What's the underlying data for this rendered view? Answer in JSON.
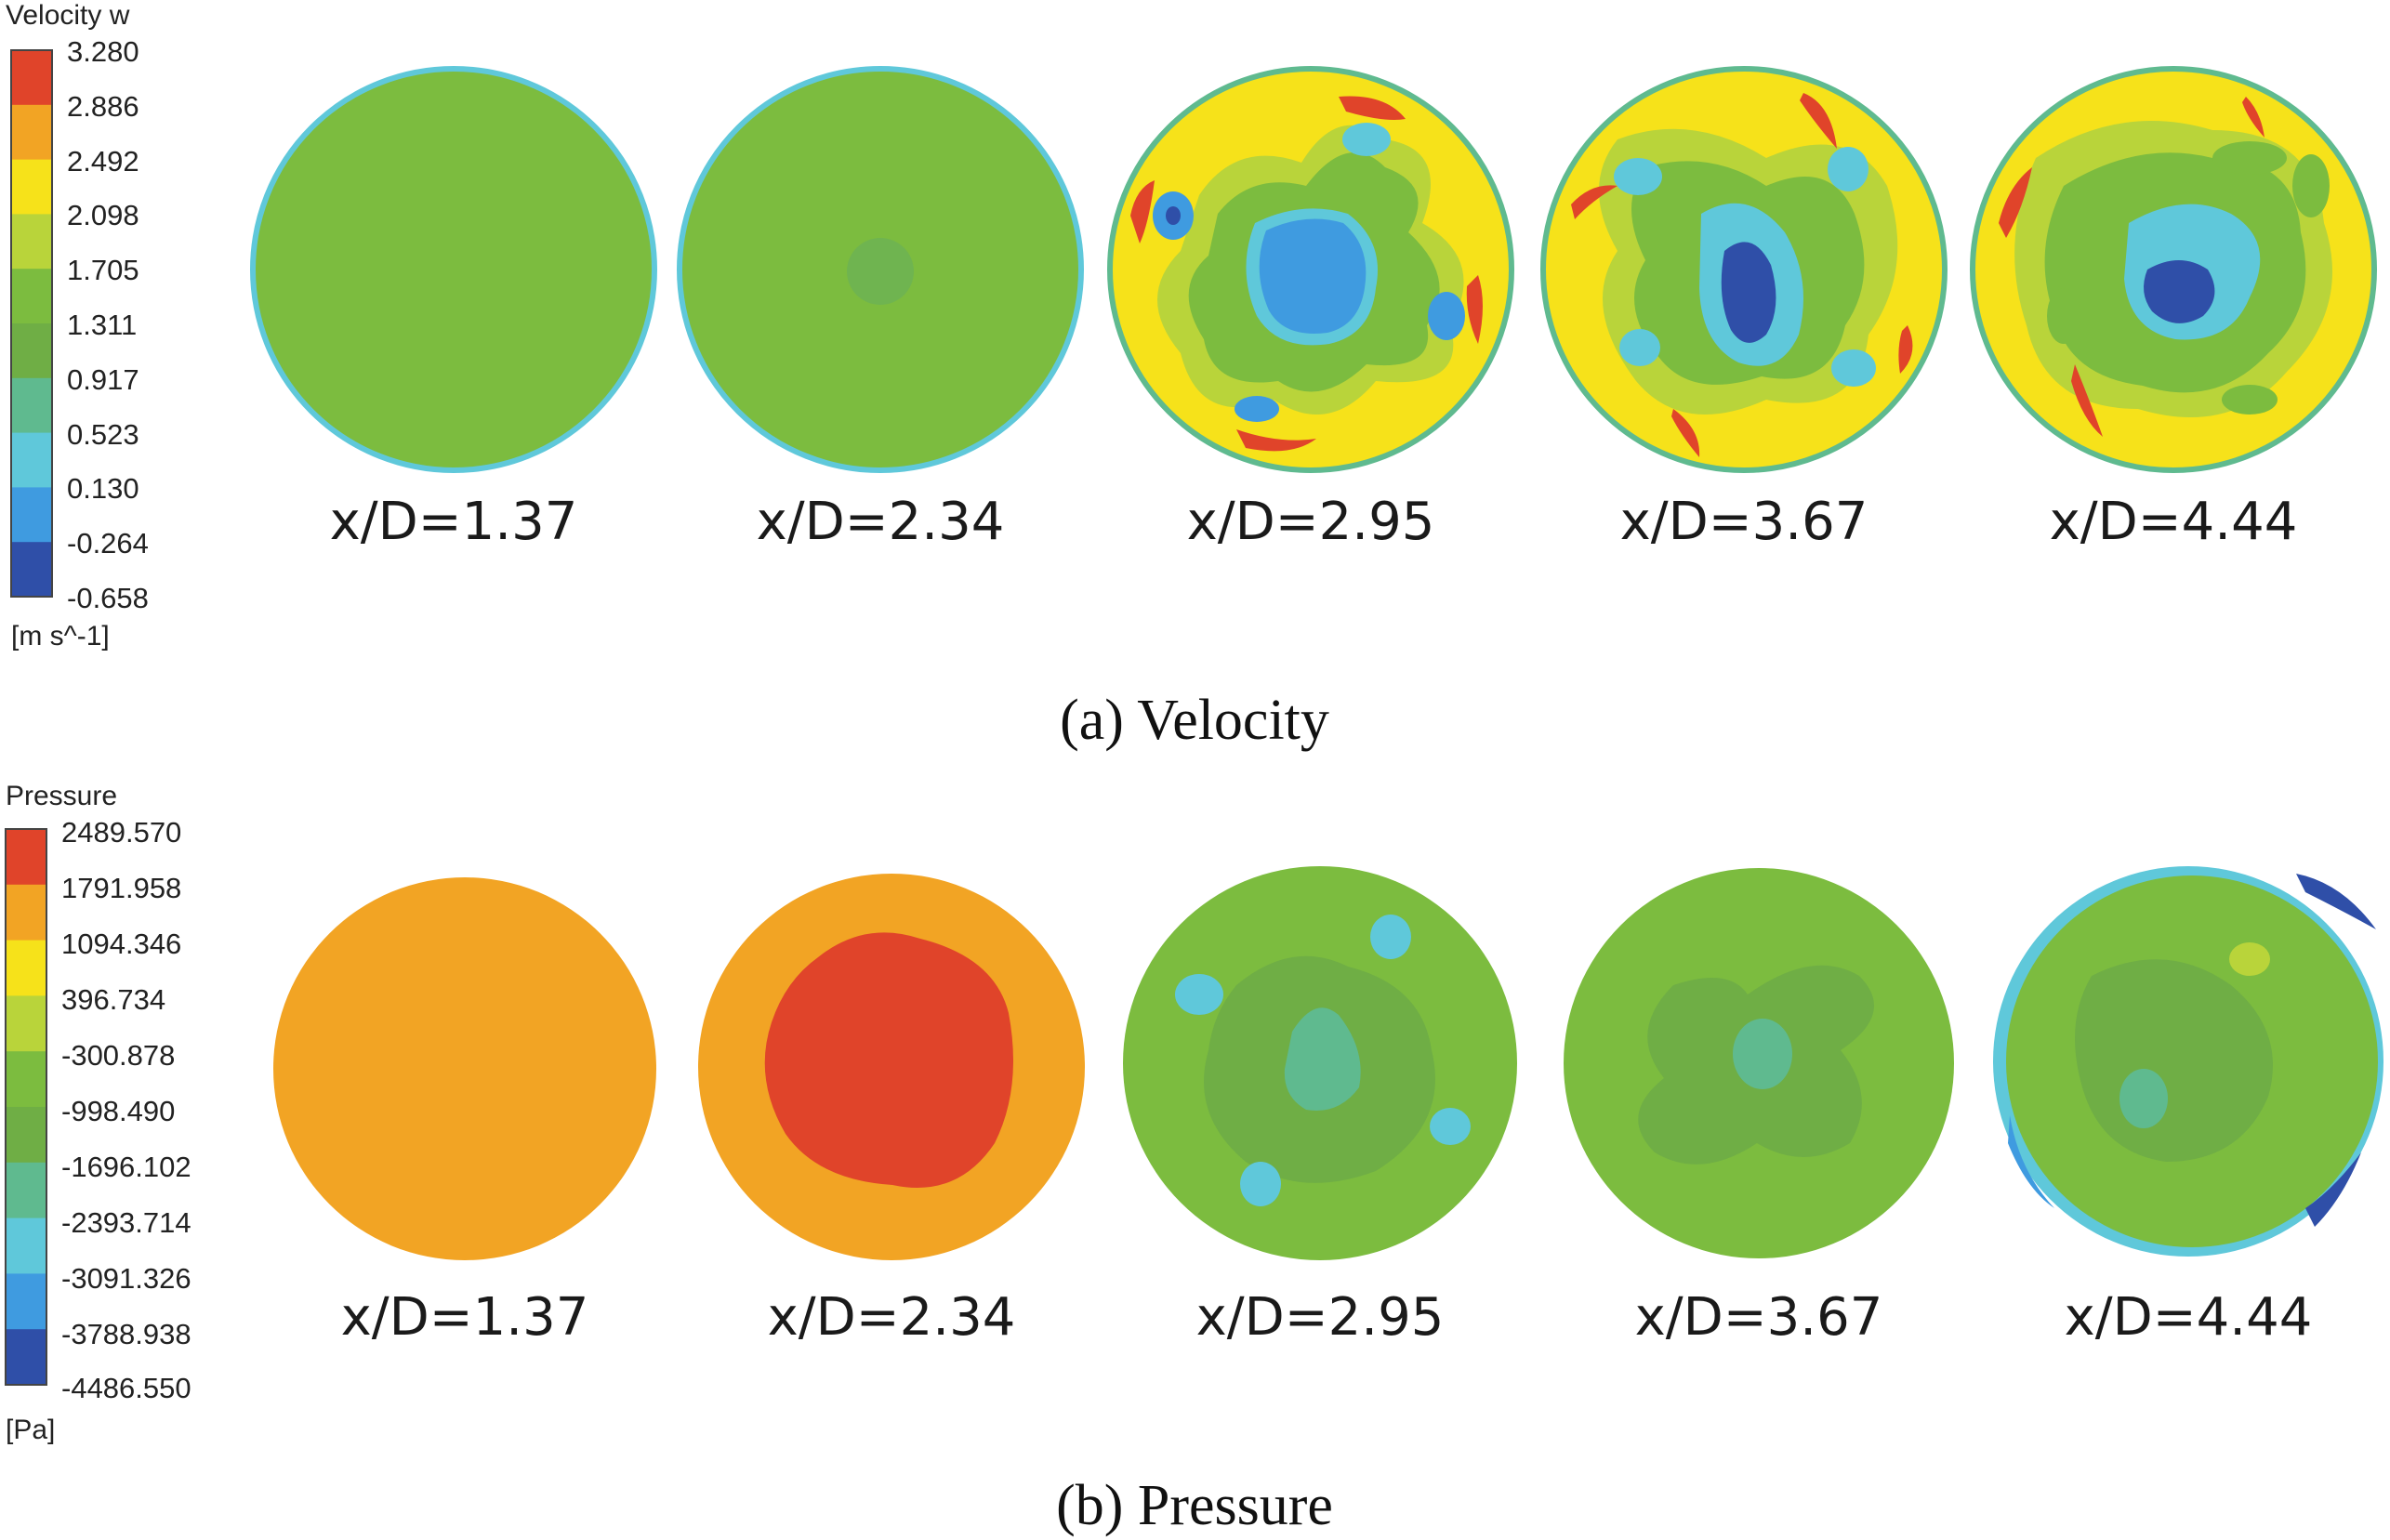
{
  "panels": [
    {
      "id": "velocity",
      "colorbar": {
        "title": "Velocity w",
        "unit": "[m s^-1]",
        "ticks": [
          "3.280",
          "2.886",
          "2.492",
          "2.098",
          "1.705",
          "1.311",
          "0.917",
          "0.523",
          "0.130",
          "-0.264",
          "-0.658"
        ],
        "colors": [
          "#e0442a",
          "#f2a424",
          "#f6e21a",
          "#b9d43a",
          "#7cbc3f",
          "#6fae45",
          "#5fba8f",
          "#5fc8da",
          "#3f9be0",
          "#2f4fa8"
        ]
      },
      "sections": [
        {
          "label": "x/D=1.37",
          "pattern": "uniform-green"
        },
        {
          "label": "x/D=2.34",
          "pattern": "uniform-green-weak-core"
        },
        {
          "label": "x/D=2.95",
          "pattern": "four-lobe-vortex-yellow"
        },
        {
          "label": "x/D=3.67",
          "pattern": "swirl-vortex-deep-core"
        },
        {
          "label": "x/D=4.44",
          "pattern": "swirl-vortex-offset-core"
        }
      ],
      "caption": "(a) Velocity"
    },
    {
      "id": "pressure",
      "colorbar": {
        "title": "Pressure",
        "unit": "[Pa]",
        "ticks": [
          "2489.570",
          "1791.958",
          "1094.346",
          "396.734",
          "-300.878",
          "-998.490",
          "-1696.102",
          "-2393.714",
          "-3091.326",
          "-3788.938",
          "-4486.550"
        ],
        "colors": [
          "#e0442a",
          "#f2a424",
          "#f6e21a",
          "#b9d43a",
          "#7cbc3f",
          "#6fae45",
          "#5fba8f",
          "#5fc8da",
          "#3f9be0",
          "#2f4fa8"
        ]
      },
      "sections": [
        {
          "label": "x/D=1.37",
          "pattern": "uniform-orange"
        },
        {
          "label": "x/D=2.34",
          "pattern": "orange-red-core"
        },
        {
          "label": "x/D=2.95",
          "pattern": "green-low-spots"
        },
        {
          "label": "x/D=3.67",
          "pattern": "green-cross-low-core"
        },
        {
          "label": "x/D=4.44",
          "pattern": "green-rim-blue"
        }
      ],
      "caption": "(b) Pressure"
    }
  ]
}
